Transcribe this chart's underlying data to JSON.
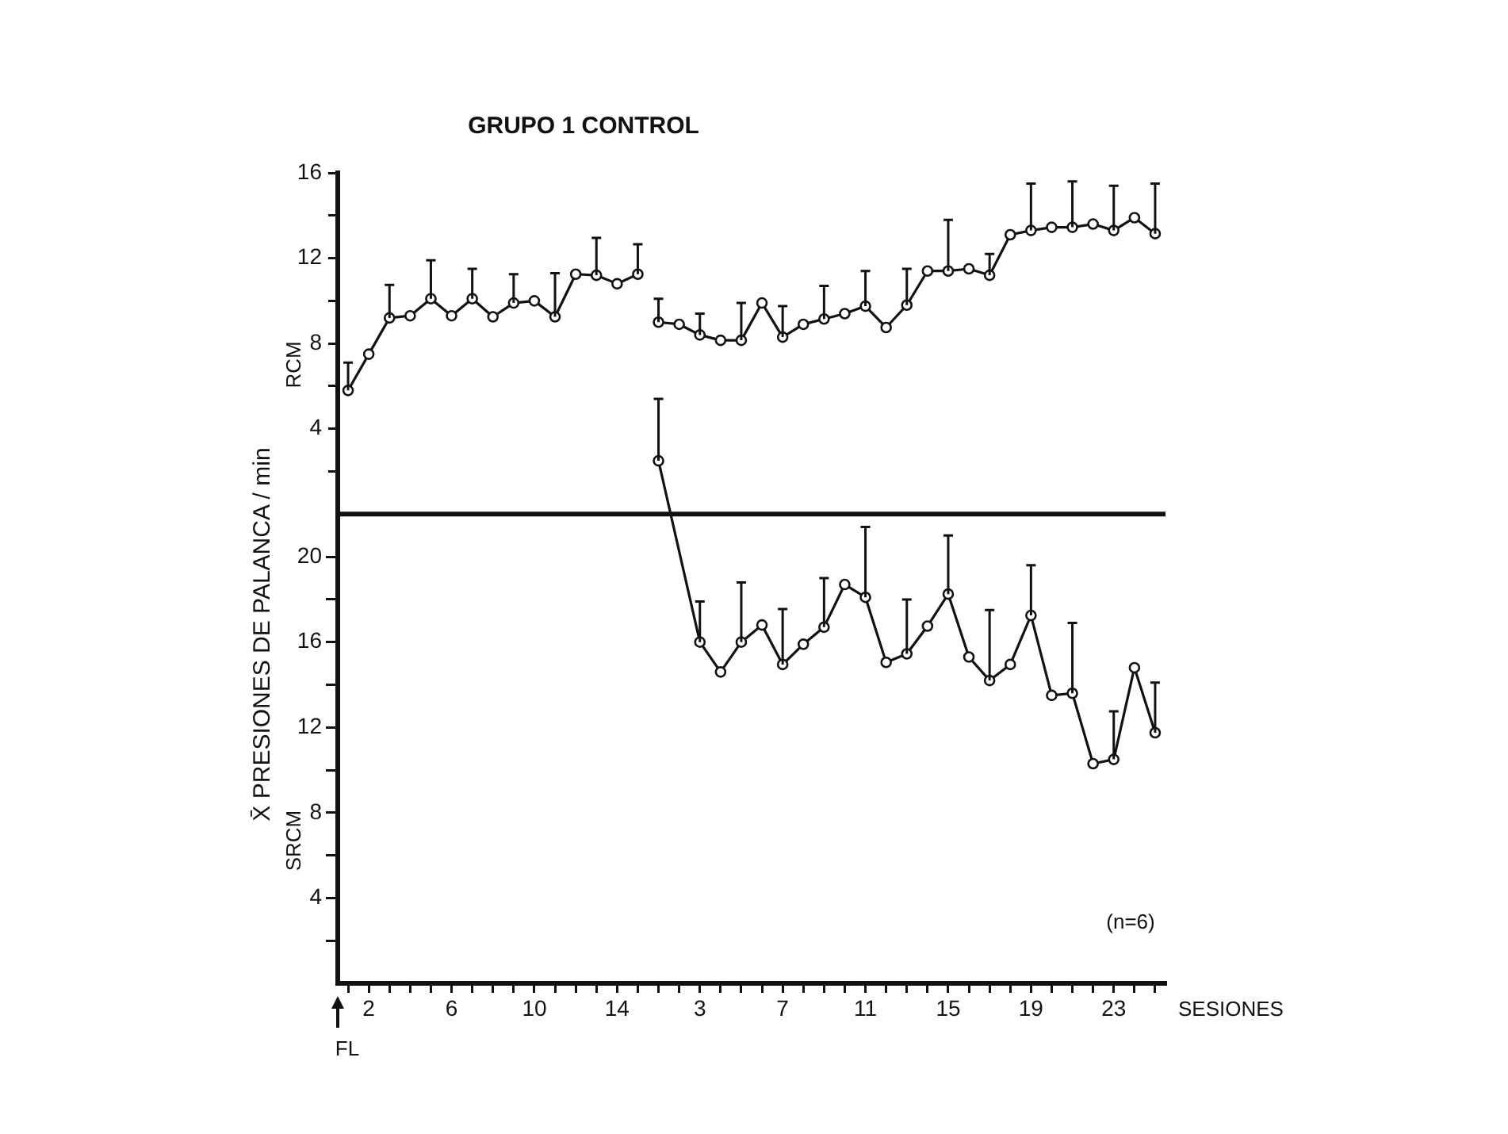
{
  "chart_data": {
    "type": "line",
    "title": "GRUPO 1 CONTROL",
    "xlabel": "SESIONES",
    "annotations": [
      "X̄ PRESIONES DE PALANCA / min",
      "(n=6)",
      "FL",
      "RCM",
      "SRCM"
    ],
    "categories": [
      null,
      "2",
      null,
      null,
      null,
      "6",
      null,
      null,
      null,
      "10",
      null,
      null,
      null,
      "14",
      null,
      null,
      null,
      "3",
      null,
      null,
      null,
      "7",
      null,
      null,
      null,
      "11",
      null,
      null,
      null,
      "15",
      null,
      null,
      null,
      "19",
      null,
      null,
      null,
      "23",
      null,
      null
    ],
    "ylim": [
      -22,
      16
    ],
    "yticks": [
      {
        "value": 2,
        "label": null
      },
      4,
      {
        "value": 6,
        "label": null
      },
      8,
      {
        "value": 10,
        "label": null
      },
      12,
      {
        "value": 14,
        "label": null
      },
      16
    ],
    "y2lim": [
      0,
      38
    ],
    "y2ticks": [
      {
        "value": 2,
        "label": null
      },
      4,
      {
        "value": 6,
        "label": null
      },
      8,
      {
        "value": 10,
        "label": null
      },
      12,
      {
        "value": 14,
        "label": null
      },
      16,
      {
        "value": 18,
        "label": null
      },
      20
    ],
    "ref_lines": [
      {
        "axis": "y",
        "value": 0,
        "color": "#111111"
      }
    ],
    "grid": false,
    "legend": false,
    "marker": "circle",
    "line_style": "solid",
    "series": [
      {
        "color": "#111111",
        "values": [
          5.8,
          7.5,
          9.2,
          9.3,
          10.1,
          9.3,
          10.1,
          9.25,
          9.9,
          10.0,
          9.25,
          11.25,
          11.2,
          10.8,
          11.25,
          null,
          null,
          null,
          null,
          null,
          null,
          null,
          null,
          null,
          null,
          null,
          null,
          null,
          null,
          null,
          null,
          null,
          null,
          null,
          null,
          null,
          null,
          null,
          null,
          null
        ],
        "errors": [
          [
            5.8,
            7.1
          ],
          null,
          [
            9.2,
            10.75
          ],
          null,
          [
            10.1,
            11.9
          ],
          null,
          [
            10.1,
            11.5
          ],
          null,
          [
            9.9,
            11.25
          ],
          null,
          [
            9.25,
            11.3
          ],
          null,
          [
            11.2,
            12.95
          ],
          null,
          [
            11.25,
            12.65
          ],
          null,
          null,
          null,
          null,
          null,
          null,
          null,
          null,
          null,
          null,
          null,
          null,
          null,
          null,
          null,
          null,
          null,
          null,
          null,
          null,
          null,
          null,
          null,
          null,
          null
        ]
      },
      {
        "color": "#111111",
        "values": [
          null,
          null,
          null,
          null,
          null,
          null,
          null,
          null,
          null,
          null,
          null,
          null,
          null,
          null,
          null,
          9.0,
          8.9,
          8.4,
          8.15,
          8.15,
          9.9,
          8.3,
          8.9,
          9.15,
          9.4,
          9.75,
          8.75,
          9.8,
          11.4,
          11.4,
          11.5,
          11.2,
          13.1,
          13.3,
          13.45,
          13.45,
          13.6,
          13.3,
          13.9,
          13.15
        ],
        "errors": [
          null,
          null,
          null,
          null,
          null,
          null,
          null,
          null,
          null,
          null,
          null,
          null,
          null,
          null,
          null,
          [
            9.0,
            10.1
          ],
          null,
          [
            8.4,
            9.4
          ],
          null,
          [
            8.15,
            9.9
          ],
          null,
          [
            8.3,
            9.75
          ],
          null,
          [
            9.15,
            10.7
          ],
          null,
          [
            9.75,
            11.4
          ],
          null,
          [
            9.8,
            11.5
          ],
          null,
          [
            11.4,
            13.8
          ],
          null,
          [
            11.2,
            12.2
          ],
          null,
          [
            13.3,
            15.5
          ],
          null,
          [
            13.45,
            15.6
          ],
          null,
          [
            13.3,
            15.4
          ],
          null,
          [
            13.15,
            15.5
          ]
        ]
      },
      {
        "color": "#111111",
        "axis": "y2",
        "values": [
          null,
          null,
          null,
          null,
          null,
          null,
          null,
          null,
          null,
          null,
          null,
          null,
          null,
          null,
          null,
          24.5,
          null,
          16.0,
          14.6,
          16.0,
          16.8,
          14.95,
          15.9,
          16.7,
          18.7,
          18.1,
          15.05,
          15.45,
          16.75,
          18.25,
          15.3,
          14.2,
          14.95,
          17.25,
          13.5,
          13.6,
          10.3,
          10.5,
          14.8,
          11.75
        ],
        "errors": [
          null,
          null,
          null,
          null,
          null,
          null,
          null,
          null,
          null,
          null,
          null,
          null,
          null,
          null,
          null,
          [
            24.5,
            27.4
          ],
          null,
          [
            16.0,
            17.9
          ],
          null,
          [
            16.0,
            18.8
          ],
          null,
          [
            14.95,
            17.55
          ],
          null,
          [
            16.7,
            19.0
          ],
          null,
          [
            18.1,
            21.4
          ],
          null,
          [
            15.45,
            18.0
          ],
          null,
          [
            18.25,
            21.0
          ],
          null,
          [
            14.2,
            17.5
          ],
          null,
          [
            17.25,
            19.6
          ],
          null,
          [
            13.6,
            16.9
          ],
          null,
          [
            10.5,
            12.75
          ],
          null,
          [
            11.75,
            14.1
          ]
        ]
      }
    ]
  }
}
